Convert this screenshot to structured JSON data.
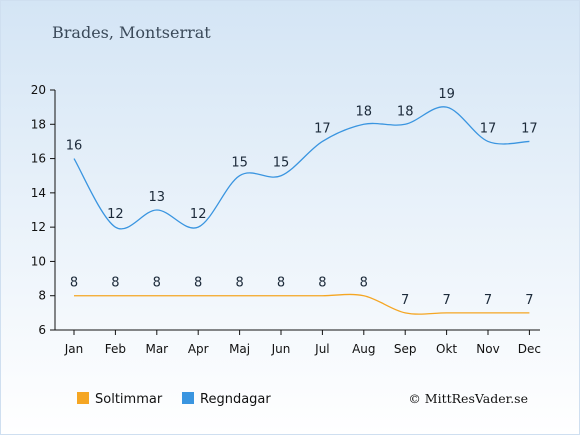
{
  "chart_data": {
    "type": "line",
    "title": "Brades, Montserrat",
    "categories": [
      "Jan",
      "Feb",
      "Mar",
      "Apr",
      "Maj",
      "Jun",
      "Jul",
      "Aug",
      "Sep",
      "Okt",
      "Nov",
      "Dec"
    ],
    "ylim": [
      6,
      20
    ],
    "yticks": [
      6,
      8,
      10,
      12,
      14,
      16,
      18,
      20
    ],
    "grid": false,
    "legend_position": "bottom",
    "series": [
      {
        "name": "Soltimmar",
        "color": "#f5a623",
        "values": [
          8,
          8,
          8,
          8,
          8,
          8,
          8,
          8,
          7,
          7,
          7,
          7
        ]
      },
      {
        "name": "Regndagar",
        "color": "#3a95e0",
        "values": [
          16,
          12,
          13,
          12,
          15,
          15,
          17,
          18,
          18,
          19,
          17,
          17
        ]
      }
    ]
  },
  "credit": "© MittResVader.se"
}
